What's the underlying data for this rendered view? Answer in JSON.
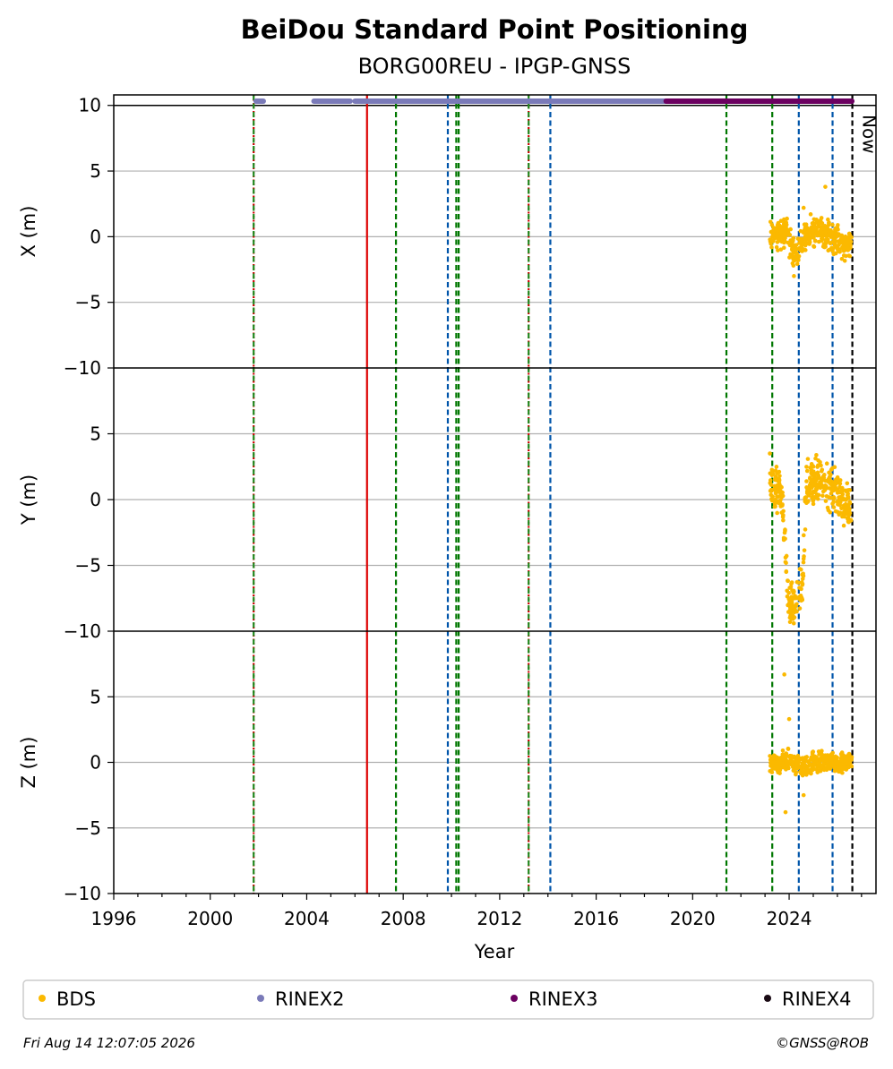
{
  "chart_data": {
    "type": "scatter",
    "title": "BeiDou Standard Point Positioning",
    "subtitle": "BORG00REU - IPGP-GNSS",
    "xlabel": "Year",
    "xlim": [
      1996,
      2027.6
    ],
    "xticks": [
      1996,
      2000,
      2004,
      2008,
      2012,
      2016,
      2020,
      2024
    ],
    "grid": true,
    "panels": [
      {
        "ylabel": "X (m)",
        "ylim": [
          -10,
          10.8
        ],
        "yticks": [
          10,
          5,
          0,
          -5,
          -10
        ]
      },
      {
        "ylabel": "Y (m)",
        "ylim": [
          -10,
          10
        ],
        "yticks": [
          5,
          0,
          -5,
          -10
        ]
      },
      {
        "ylabel": "Z (m)",
        "ylim": [
          -10,
          10
        ],
        "yticks": [
          5,
          0,
          -5,
          -10
        ]
      }
    ],
    "now_label": "Now",
    "now_year": 2026.62,
    "event_lines": [
      {
        "year": 2001.8,
        "color": "#cc0000",
        "style": "dotted"
      },
      {
        "year": 2001.8,
        "color": "#228b22",
        "style": "dashed"
      },
      {
        "year": 2006.5,
        "color": "#dd0000",
        "style": "solid"
      },
      {
        "year": 2007.7,
        "color": "#007700",
        "style": "dashed"
      },
      {
        "year": 2009.85,
        "color": "#0055aa",
        "style": "dashed"
      },
      {
        "year": 2010.2,
        "color": "#007700",
        "style": "dashed"
      },
      {
        "year": 2010.3,
        "color": "#007700",
        "style": "dashed"
      },
      {
        "year": 2013.2,
        "color": "#cc0000",
        "style": "dotted"
      },
      {
        "year": 2013.2,
        "color": "#228b22",
        "style": "dashed"
      },
      {
        "year": 2014.1,
        "color": "#0055aa",
        "style": "dashed"
      },
      {
        "year": 2021.4,
        "color": "#007700",
        "style": "dashed"
      },
      {
        "year": 2023.3,
        "color": "#007700",
        "style": "dashed"
      },
      {
        "year": 2024.4,
        "color": "#0055aa",
        "style": "dashed"
      },
      {
        "year": 2025.8,
        "color": "#0055aa",
        "style": "dashed"
      },
      {
        "year": 2026.62,
        "color": "#000000",
        "style": "dashed"
      }
    ],
    "availability": [
      {
        "series": "RINEX2",
        "ranges": [
          [
            2001.9,
            2002.2
          ],
          [
            2004.3,
            2005.8
          ],
          [
            2006.0,
            2018.9
          ]
        ]
      },
      {
        "series": "RINEX3",
        "ranges": [
          [
            2018.9,
            2026.6
          ]
        ]
      }
    ],
    "series": [
      {
        "name": "BDS",
        "color": "#fbb900",
        "x_range": [
          2023.2,
          2026.6
        ],
        "X": {
          "anchors": [
            [
              2023.2,
              0.3
            ],
            [
              2023.6,
              0.1
            ],
            [
              2023.9,
              0.4
            ],
            [
              2024.1,
              -0.9
            ],
            [
              2024.3,
              -1.5
            ],
            [
              2024.45,
              -0.7
            ],
            [
              2024.7,
              0.2
            ],
            [
              2025.0,
              0.6
            ],
            [
              2025.4,
              0.3
            ],
            [
              2025.8,
              0.0
            ],
            [
              2026.2,
              -0.6
            ],
            [
              2026.55,
              -0.8
            ]
          ],
          "spread": 0.8,
          "outliers": [
            [
              2025.5,
              3.8
            ],
            [
              2024.2,
              -3.0
            ],
            [
              2024.6,
              2.2
            ]
          ]
        },
        "Y": {
          "anchors": [
            [
              2023.2,
              0.8
            ],
            [
              2023.4,
              0.7
            ],
            [
              2023.7,
              0.3
            ],
            [
              2024.0,
              -8.6
            ],
            [
              2024.3,
              -7.5
            ],
            [
              2024.55,
              -6.8
            ],
            [
              2024.7,
              0.7
            ],
            [
              2025.0,
              1.5
            ],
            [
              2025.4,
              1.2
            ],
            [
              2025.8,
              0.7
            ],
            [
              2026.2,
              0.0
            ],
            [
              2026.55,
              -0.8
            ]
          ],
          "spread": 1.3,
          "outliers": [
            [
              2023.2,
              3.5
            ],
            [
              2024.2,
              -7.0
            ],
            [
              2024.6,
              -4.5
            ]
          ]
        },
        "Z": {
          "anchors": [
            [
              2023.2,
              0.0
            ],
            [
              2023.6,
              0.0
            ],
            [
              2024.0,
              0.2
            ],
            [
              2024.3,
              -0.2
            ],
            [
              2024.6,
              -0.4
            ],
            [
              2025.0,
              -0.2
            ],
            [
              2025.5,
              0.1
            ],
            [
              2026.0,
              0.0
            ],
            [
              2026.55,
              0.1
            ]
          ],
          "spread": 0.6,
          "outliers": [
            [
              2023.8,
              6.7
            ],
            [
              2023.85,
              -3.8
            ],
            [
              2024.0,
              3.3
            ],
            [
              2024.6,
              -2.5
            ]
          ]
        }
      },
      {
        "name": "RINEX2",
        "color": "#7a7ab8"
      },
      {
        "name": "RINEX3",
        "color": "#6b0060"
      },
      {
        "name": "RINEX4",
        "color": "#1a0a14"
      }
    ],
    "legend": {
      "placement": "bottom",
      "entries": [
        "BDS",
        "RINEX2",
        "RINEX3",
        "RINEX4"
      ]
    }
  },
  "footer": {
    "timestamp": "Fri Aug 14 12:07:05 2026",
    "credit": "©GNSS@ROB"
  }
}
